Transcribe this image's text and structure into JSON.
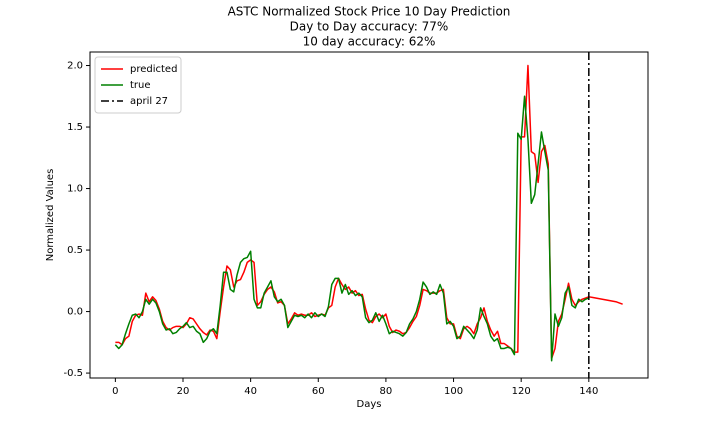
{
  "chart_data": {
    "type": "line",
    "title": "ASTC Normalized Stock Price 10 Day Prediction",
    "subtitle": [
      "Day to Day accuracy: 77%",
      "10 day accuracy: 62%"
    ],
    "xlabel": "Days",
    "ylabel": "Normalized Values",
    "x": [
      0,
      1,
      2,
      3,
      4,
      5,
      6,
      7,
      8,
      9,
      10,
      11,
      12,
      13,
      14,
      15,
      16,
      17,
      18,
      19,
      20,
      21,
      22,
      23,
      24,
      25,
      26,
      27,
      28,
      29,
      30,
      31,
      32,
      33,
      34,
      35,
      36,
      37,
      38,
      39,
      40,
      41,
      42,
      43,
      44,
      45,
      46,
      47,
      48,
      49,
      50,
      51,
      52,
      53,
      54,
      55,
      56,
      57,
      58,
      59,
      60,
      61,
      62,
      63,
      64,
      65,
      66,
      67,
      68,
      69,
      70,
      71,
      72,
      73,
      74,
      75,
      76,
      77,
      78,
      79,
      80,
      81,
      82,
      83,
      84,
      85,
      86,
      87,
      88,
      89,
      90,
      91,
      92,
      93,
      94,
      95,
      96,
      97,
      98,
      99,
      100,
      101,
      102,
      103,
      104,
      105,
      106,
      107,
      108,
      109,
      110,
      111,
      112,
      113,
      114,
      115,
      116,
      117,
      118,
      119,
      120,
      121,
      122,
      123,
      124,
      125,
      126,
      127,
      128,
      129,
      130,
      131,
      132,
      133,
      134,
      135,
      136,
      137,
      138,
      139,
      140,
      141,
      142,
      143,
      144,
      145,
      146,
      147,
      148,
      149,
      150
    ],
    "series": [
      {
        "name": "predicted",
        "color": "#ff0000",
        "values": [
          -0.25,
          -0.25,
          -0.27,
          -0.22,
          -0.2,
          -0.08,
          -0.03,
          -0.02,
          -0.03,
          0.15,
          0.08,
          0.12,
          0.09,
          0.02,
          -0.08,
          -0.13,
          -0.15,
          -0.13,
          -0.12,
          -0.12,
          -0.13,
          -0.1,
          -0.05,
          -0.06,
          -0.1,
          -0.14,
          -0.17,
          -0.19,
          -0.15,
          -0.16,
          -0.22,
          0.0,
          0.2,
          0.37,
          0.34,
          0.2,
          0.25,
          0.26,
          0.32,
          0.4,
          0.42,
          0.4,
          0.05,
          0.08,
          0.14,
          0.18,
          0.2,
          0.16,
          0.07,
          0.08,
          0.05,
          -0.1,
          -0.06,
          -0.01,
          -0.03,
          -0.02,
          -0.03,
          -0.03,
          -0.01,
          -0.04,
          -0.03,
          -0.02,
          -0.03,
          0.03,
          0.05,
          0.2,
          0.27,
          0.22,
          0.18,
          0.2,
          0.15,
          0.17,
          0.13,
          0.14,
          0.02,
          -0.07,
          -0.09,
          -0.04,
          -0.02,
          -0.05,
          -0.02,
          -0.12,
          -0.17,
          -0.15,
          -0.16,
          -0.18,
          -0.17,
          -0.13,
          -0.08,
          -0.04,
          0.05,
          0.18,
          0.17,
          0.15,
          0.15,
          0.15,
          0.17,
          0.18,
          -0.05,
          -0.1,
          -0.1,
          -0.2,
          -0.22,
          -0.14,
          -0.12,
          -0.14,
          -0.18,
          -0.1,
          -0.05,
          0.03,
          -0.08,
          -0.15,
          -0.2,
          -0.16,
          -0.26,
          -0.26,
          -0.28,
          -0.3,
          -0.33,
          -0.33,
          1.42,
          1.42,
          2.0,
          1.3,
          1.28,
          1.05,
          1.3,
          1.35,
          1.2,
          -0.38,
          -0.3,
          -0.08,
          -0.02,
          0.1,
          0.23,
          0.1,
          0.05,
          0.08,
          0.1,
          0.11,
          0.12,
          0.115,
          0.11,
          0.105,
          0.1,
          0.095,
          0.09,
          0.085,
          0.08,
          0.07,
          0.06
        ]
      },
      {
        "name": "true",
        "color": "#008000",
        "values": [
          -0.27,
          -0.3,
          -0.27,
          -0.18,
          -0.1,
          -0.03,
          -0.02,
          -0.05,
          0.0,
          0.1,
          0.06,
          0.1,
          0.07,
          0.0,
          -0.1,
          -0.15,
          -0.14,
          -0.18,
          -0.17,
          -0.14,
          -0.12,
          -0.09,
          -0.13,
          -0.12,
          -0.16,
          -0.18,
          -0.25,
          -0.22,
          -0.16,
          -0.14,
          -0.18,
          0.05,
          0.32,
          0.32,
          0.18,
          0.16,
          0.3,
          0.4,
          0.43,
          0.44,
          0.49,
          0.1,
          0.03,
          0.03,
          0.15,
          0.2,
          0.25,
          0.12,
          0.08,
          0.1,
          0.05,
          -0.13,
          -0.08,
          -0.03,
          -0.04,
          -0.03,
          -0.05,
          -0.02,
          -0.05,
          -0.01,
          -0.04,
          -0.02,
          -0.04,
          0.04,
          0.22,
          0.27,
          0.27,
          0.15,
          0.22,
          0.14,
          0.17,
          0.13,
          0.15,
          0.12,
          -0.05,
          -0.09,
          -0.07,
          -0.01,
          -0.08,
          -0.03,
          -0.1,
          -0.18,
          -0.16,
          -0.17,
          -0.18,
          -0.2,
          -0.17,
          -0.1,
          -0.06,
          0.0,
          0.1,
          0.24,
          0.2,
          0.14,
          0.16,
          0.14,
          0.22,
          0.15,
          -0.1,
          -0.08,
          -0.12,
          -0.22,
          -0.2,
          -0.12,
          -0.15,
          -0.18,
          -0.22,
          -0.15,
          0.03,
          -0.04,
          -0.1,
          -0.2,
          -0.24,
          -0.22,
          -0.3,
          -0.3,
          -0.29,
          -0.3,
          -0.35,
          1.45,
          1.4,
          1.75,
          1.4,
          0.88,
          0.95,
          1.2,
          1.46,
          1.3,
          1.15,
          -0.4,
          -0.02,
          -0.12,
          -0.05,
          0.15,
          0.2,
          0.05,
          0.03,
          0.1,
          0.08,
          0.1,
          0.11,
          null,
          null,
          null,
          null,
          null,
          null,
          null,
          null,
          null,
          null
        ]
      }
    ],
    "vline": {
      "x": 140,
      "label": "april 27",
      "color": "#000000",
      "style": "dashdot"
    },
    "xlim": [
      -7.5,
      157.5
    ],
    "xticks": [
      0,
      20,
      40,
      60,
      80,
      100,
      120,
      140
    ],
    "ylim": [
      -0.54,
      2.11
    ],
    "yticks": [
      -0.5,
      {
        "value": 0,
        "label": "0.0"
      },
      0.5,
      {
        "value": 1,
        "label": "1.0"
      },
      1.5,
      {
        "value": 2,
        "label": "2.0"
      }
    ],
    "legend": "upper left",
    "grid": false
  }
}
